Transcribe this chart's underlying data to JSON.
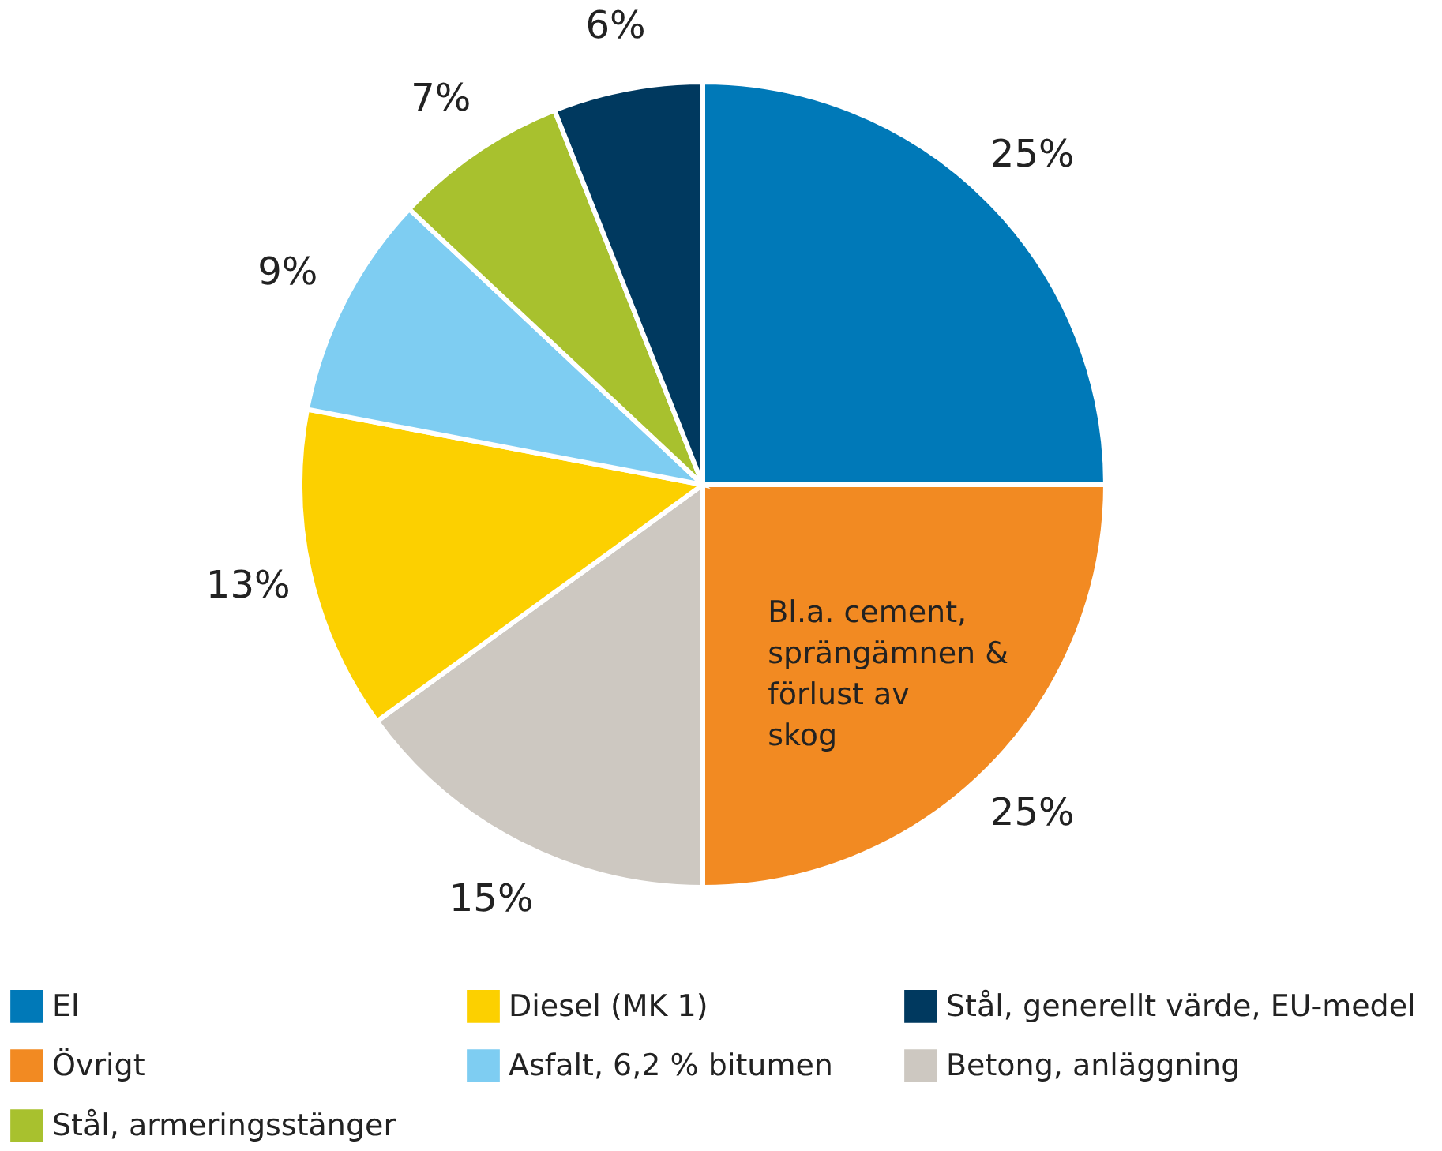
{
  "chart_data": {
    "type": "pie",
    "categories": [
      "El",
      "Övrigt",
      "Betong, anläggning",
      "Diesel (MK 1)",
      "Asfalt, 6,2 % bitumen",
      "Stål, armeringsstänger",
      "Stål, generellt värde, EU-medel"
    ],
    "values": [
      25,
      25,
      15,
      13,
      9,
      7,
      6
    ],
    "value_labels": [
      "25%",
      "25%",
      "15%",
      "13%",
      "9%",
      "7%",
      "6%"
    ],
    "colors": [
      "#0079b8",
      "#f28a22",
      "#cdc8c1",
      "#fcd000",
      "#7ecdf2",
      "#a8c12e",
      "#00395f"
    ],
    "annotations": [
      {
        "text": "Bl.a. cement, sprängämnen & förlust av skog",
        "x": "Övrigt"
      }
    ],
    "legend": "bottom"
  }
}
